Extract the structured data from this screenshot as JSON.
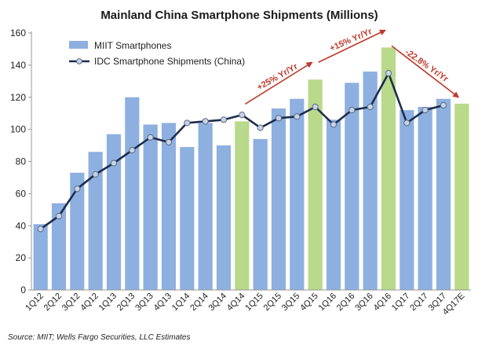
{
  "chart_data": {
    "type": "bar",
    "title": "Mainland China Smartphone Shipments (Millions)",
    "xlabel": "",
    "ylabel": "",
    "ylim": [
      0,
      160
    ],
    "yticks": [
      0,
      20,
      40,
      60,
      80,
      100,
      120,
      140,
      160
    ],
    "categories": [
      "1Q12",
      "2Q12",
      "3Q12",
      "4Q12",
      "1Q13",
      "2Q13",
      "3Q13",
      "4Q13",
      "1Q14",
      "2Q14",
      "3Q14",
      "4Q14",
      "1Q15",
      "2Q15",
      "3Q15",
      "4Q15",
      "1Q16",
      "2Q16",
      "3Q16",
      "4Q16",
      "1Q17",
      "2Q17",
      "3Q17",
      "4Q17E"
    ],
    "series": [
      {
        "name": "MIIT Smartphones",
        "type": "bar",
        "color": "#8db0e0",
        "highlight_color": "#b9d98b",
        "highlight_categories": [
          "4Q14",
          "4Q15",
          "4Q16",
          "4Q17E"
        ],
        "values": [
          41,
          54,
          73,
          86,
          97,
          120,
          103,
          104,
          89,
          104,
          90,
          105,
          94,
          113,
          119,
          131,
          106,
          129,
          136,
          151,
          112,
          114,
          119,
          116
        ]
      },
      {
        "name": "IDC Smartphone Shipments (China)",
        "type": "line",
        "color": "#1f2d4d",
        "marker_fill": "#c8d3e3",
        "values": [
          38,
          46,
          63,
          72,
          79,
          87,
          95,
          92,
          104,
          105,
          106,
          109,
          101,
          107,
          108,
          114,
          103,
          112,
          114,
          135,
          104,
          112,
          115,
          null
        ]
      }
    ],
    "legend_position": "top-left",
    "grid": false,
    "annotations": [
      {
        "text": "+25% Yr/Yr",
        "from": "4Q14",
        "to": "4Q15"
      },
      {
        "text": "+15% Yr/Yr",
        "from": "4Q15",
        "to": "4Q16"
      },
      {
        "text": "-22.8% Yr/Yr",
        "from": "4Q16",
        "to": "4Q17E"
      }
    ],
    "annotation_color": "#c0392b",
    "source": "Source: MIIT; Wells Fargo Securities, LLC Estimates"
  }
}
